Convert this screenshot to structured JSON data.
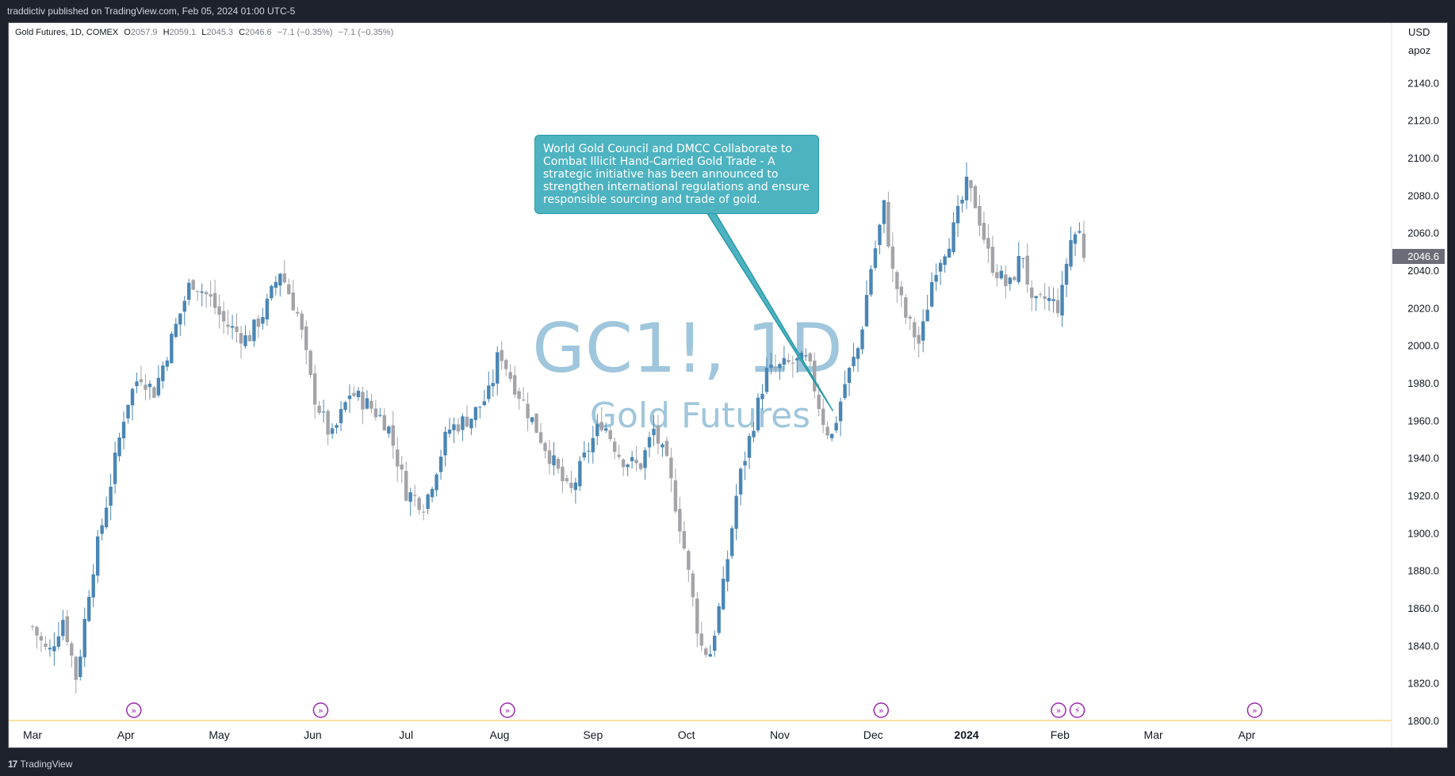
{
  "header": {
    "published_text": "traddictiv published on TradingView.com, Feb 05, 2024 01:00 UTC-5"
  },
  "legend": {
    "symbol": "Gold Futures, 1D, COMEX",
    "open_label": "O",
    "open": "2057.9",
    "high_label": "H",
    "high": "2059.1",
    "low_label": "L",
    "low": "2045.3",
    "close_label": "C",
    "close": "2046.6",
    "change": "−7.1 (−0.35%)",
    "change2": "−7.1 (−0.35%)"
  },
  "watermark": {
    "ticker": "GC1!, 1D",
    "name": "Gold Futures"
  },
  "price_scale": {
    "currency": "USD",
    "unit": "apoz",
    "last_price": "2046.6"
  },
  "annotation": {
    "text": "World Gold Council and DMCC Collaborate to Combat Illicit Hand-Carried Gold Trade - A strategic initiative has been announced to strengthen international regulations and ensure responsible sourcing and trade of gold."
  },
  "footer": {
    "brand": "TradingView",
    "logo": "17"
  },
  "colors": {
    "up": "#4a86b5",
    "down": "#a3a3a8",
    "event": "#9c27b0",
    "annotation_bg": "#4db3c1",
    "watermark": "#9fc6dc",
    "last_price_bg": "#6b6e78"
  },
  "chart_data": {
    "type": "candlestick",
    "title": "Gold Futures, 1D, COMEX",
    "ylim": [
      1800,
      2160
    ],
    "y_ticks": [
      1800,
      1820,
      1840,
      1860,
      1880,
      1900,
      1920,
      1940,
      1960,
      1980,
      2000,
      2020,
      2040,
      2060,
      2080,
      2100,
      2120,
      2140
    ],
    "y_tick_labels": [
      "1800.0",
      "1820.0",
      "1840.0",
      "1860.0",
      "1880.0",
      "1900.0",
      "1920.0",
      "1940.0",
      "1960.0",
      "1980.0",
      "2000.0",
      "2020.0",
      "2040.0",
      "2060.0",
      "2080.0",
      "2100.0",
      "2120.0",
      "2140.0"
    ],
    "x_labels": [
      "Mar",
      "Apr",
      "May",
      "Jun",
      "Jul",
      "Aug",
      "Sep",
      "Oct",
      "Nov",
      "Dec",
      "2024",
      "Feb",
      "Mar",
      "Apr"
    ],
    "x_label_months": [
      0,
      1,
      2,
      3,
      4,
      5,
      6,
      7,
      8,
      9,
      10,
      11,
      12,
      13
    ],
    "event_markers_month": [
      1.0,
      3.0,
      5.0,
      9.0,
      10.9,
      11.1,
      13.0
    ],
    "event_marker_glyphs": [
      "»",
      "»",
      "»",
      "»",
      "»",
      "⚡",
      "»"
    ],
    "annotation_target": {
      "month": 8.57,
      "price": 1965
    },
    "anchors": [
      {
        "month": 0.0,
        "price": 1850
      },
      {
        "month": 0.17,
        "price": 1835
      },
      {
        "month": 0.33,
        "price": 1855
      },
      {
        "month": 0.47,
        "price": 1822
      },
      {
        "month": 0.62,
        "price": 1875
      },
      {
        "month": 0.85,
        "price": 1930
      },
      {
        "month": 1.0,
        "price": 1968
      },
      {
        "month": 1.15,
        "price": 1985
      },
      {
        "month": 1.3,
        "price": 1975
      },
      {
        "month": 1.5,
        "price": 2005
      },
      {
        "month": 1.7,
        "price": 2035
      },
      {
        "month": 1.9,
        "price": 2025
      },
      {
        "month": 2.05,
        "price": 2012
      },
      {
        "month": 2.3,
        "price": 2003
      },
      {
        "month": 2.5,
        "price": 2020
      },
      {
        "month": 2.65,
        "price": 2040
      },
      {
        "month": 2.85,
        "price": 2015
      },
      {
        "month": 3.0,
        "price": 1975
      },
      {
        "month": 3.2,
        "price": 1950
      },
      {
        "month": 3.4,
        "price": 1975
      },
      {
        "month": 3.6,
        "price": 1968
      },
      {
        "month": 3.8,
        "price": 1958
      },
      {
        "month": 4.0,
        "price": 1922
      },
      {
        "month": 4.2,
        "price": 1915
      },
      {
        "month": 4.45,
        "price": 1955
      },
      {
        "month": 4.7,
        "price": 1962
      },
      {
        "month": 4.9,
        "price": 1975
      },
      {
        "month": 5.0,
        "price": 1998
      },
      {
        "month": 5.1,
        "price": 1985
      },
      {
        "month": 5.3,
        "price": 1965
      },
      {
        "month": 5.55,
        "price": 1940
      },
      {
        "month": 5.75,
        "price": 1920
      },
      {
        "month": 5.95,
        "price": 1945
      },
      {
        "month": 6.1,
        "price": 1960
      },
      {
        "month": 6.3,
        "price": 1940
      },
      {
        "month": 6.5,
        "price": 1935
      },
      {
        "month": 6.65,
        "price": 1955
      },
      {
        "month": 6.8,
        "price": 1935
      },
      {
        "month": 6.95,
        "price": 1900
      },
      {
        "month": 7.05,
        "price": 1870
      },
      {
        "month": 7.15,
        "price": 1840
      },
      {
        "month": 7.25,
        "price": 1835
      },
      {
        "month": 7.4,
        "price": 1872
      },
      {
        "month": 7.55,
        "price": 1925
      },
      {
        "month": 7.7,
        "price": 1955
      },
      {
        "month": 7.85,
        "price": 1985
      },
      {
        "month": 8.1,
        "price": 1990
      },
      {
        "month": 8.3,
        "price": 1992
      },
      {
        "month": 8.45,
        "price": 1962
      },
      {
        "month": 8.55,
        "price": 1950
      },
      {
        "month": 8.7,
        "price": 1980
      },
      {
        "month": 8.85,
        "price": 2000
      },
      {
        "month": 8.97,
        "price": 2040
      },
      {
        "month": 9.05,
        "price": 2058
      },
      {
        "month": 9.12,
        "price": 2075
      },
      {
        "month": 9.2,
        "price": 2040
      },
      {
        "month": 9.35,
        "price": 2015
      },
      {
        "month": 9.5,
        "price": 2000
      },
      {
        "month": 9.65,
        "price": 2040
      },
      {
        "month": 9.85,
        "price": 2060
      },
      {
        "month": 10.0,
        "price": 2085
      },
      {
        "month": 10.1,
        "price": 2075
      },
      {
        "month": 10.25,
        "price": 2045
      },
      {
        "month": 10.45,
        "price": 2030
      },
      {
        "month": 10.6,
        "price": 2050
      },
      {
        "month": 10.7,
        "price": 2020
      },
      {
        "month": 10.85,
        "price": 2025
      },
      {
        "month": 11.0,
        "price": 2020
      },
      {
        "month": 11.1,
        "price": 2055
      },
      {
        "month": 11.2,
        "price": 2062
      },
      {
        "month": 11.27,
        "price": 2046.6
      }
    ]
  }
}
